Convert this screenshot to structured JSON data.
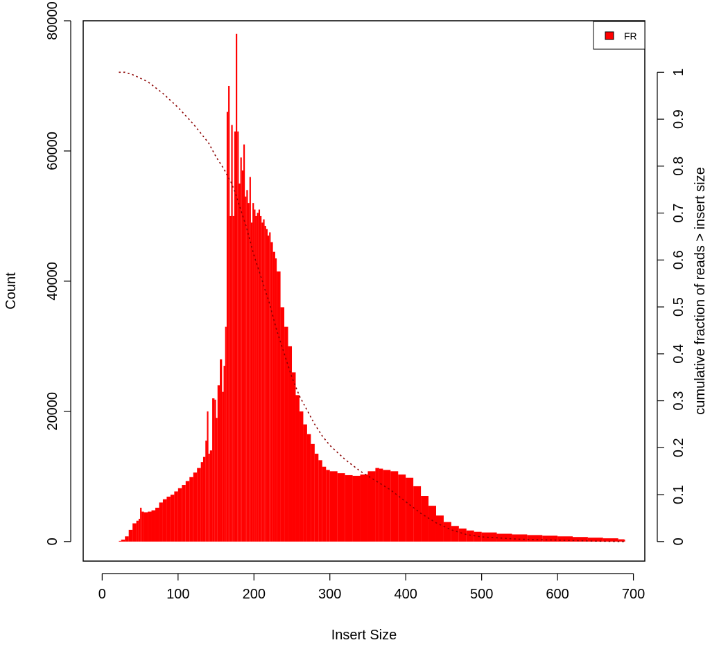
{
  "chart_data": {
    "type": "bar",
    "title": "",
    "xlabel": "Insert Size",
    "ylabel": "Count",
    "y2label": "cumulative fraction of reads > insert size",
    "xlim": [
      -25,
      715
    ],
    "ylim": [
      -3000,
      80000
    ],
    "y2lim": [
      -0.0416,
      1.1097
    ],
    "xticks": [
      "0",
      "100",
      "200",
      "300",
      "400",
      "500",
      "600",
      "700"
    ],
    "yticks": [
      "0",
      "20000",
      "40000",
      "60000",
      "80000"
    ],
    "y2ticks": [
      "0",
      "0.1",
      "0.2",
      "0.3",
      "0.4",
      "0.5",
      "0.6",
      "0.7",
      "0.8",
      "0.9",
      "1"
    ],
    "legend": {
      "position": "top-right",
      "entries": [
        {
          "label": "FR",
          "color": "#ff0000"
        }
      ]
    },
    "series": [
      {
        "name": "FR",
        "kind": "bar",
        "color": "#ff0000",
        "x": [
          22,
          25,
          30,
          35,
          40,
          45,
          48,
          50,
          52,
          55,
          60,
          65,
          70,
          75,
          80,
          85,
          90,
          95,
          100,
          105,
          110,
          115,
          120,
          125,
          130,
          133,
          136,
          138,
          140,
          142,
          145,
          148,
          150,
          152,
          155,
          158,
          160,
          162,
          164,
          166,
          168,
          170,
          172,
          174,
          176,
          178,
          180,
          182,
          184,
          186,
          188,
          190,
          192,
          194,
          196,
          198,
          200,
          202,
          204,
          206,
          208,
          210,
          212,
          214,
          216,
          218,
          220,
          222,
          225,
          228,
          230,
          235,
          240,
          245,
          250,
          255,
          260,
          265,
          270,
          275,
          280,
          285,
          290,
          295,
          300,
          310,
          320,
          330,
          340,
          350,
          360,
          365,
          370,
          380,
          390,
          400,
          410,
          420,
          430,
          440,
          450,
          460,
          470,
          480,
          490,
          500,
          520,
          540,
          560,
          580,
          600,
          620,
          640,
          660,
          680,
          688
        ],
        "values": [
          100,
          300,
          800,
          1800,
          2800,
          3200,
          3500,
          5200,
          4600,
          4500,
          4600,
          4800,
          5200,
          6000,
          6500,
          6900,
          7200,
          7700,
          8200,
          8700,
          9300,
          9900,
          10600,
          11300,
          12200,
          13000,
          15500,
          20000,
          13500,
          14000,
          22000,
          21800,
          19000,
          24000,
          28000,
          23000,
          27000,
          33000,
          66000,
          70000,
          50000,
          64000,
          50000,
          63000,
          78000,
          63000,
          55000,
          59000,
          57000,
          61000,
          53000,
          54000,
          52000,
          56000,
          49000,
          52000,
          51000,
          50000,
          50500,
          51000,
          50000,
          49000,
          49500,
          48500,
          48000,
          47000,
          47500,
          46000,
          44500,
          43500,
          41500,
          36000,
          33000,
          30000,
          26000,
          22500,
          20000,
          18000,
          16500,
          15000,
          13500,
          12500,
          11500,
          11000,
          10800,
          10500,
          10200,
          10100,
          10300,
          10800,
          11300,
          11200,
          11000,
          10800,
          10300,
          9800,
          8500,
          7000,
          5500,
          4000,
          3000,
          2400,
          2000,
          1700,
          1500,
          1400,
          1200,
          1100,
          1000,
          900,
          800,
          700,
          600,
          500,
          350,
          300
        ]
      },
      {
        "name": "",
        "kind": "cumulative",
        "color": "#8b0000",
        "axis": "right",
        "x": [
          22,
          30,
          40,
          60,
          80,
          100,
          120,
          140,
          150,
          160,
          170,
          175,
          180,
          190,
          200,
          210,
          220,
          230,
          240,
          250,
          260,
          270,
          280,
          290,
          300,
          320,
          340,
          360,
          380,
          400,
          420,
          440,
          460,
          480,
          500,
          550,
          600,
          650,
          688
        ],
        "values": [
          1.0,
          1.0,
          0.995,
          0.98,
          0.955,
          0.925,
          0.89,
          0.85,
          0.82,
          0.795,
          0.765,
          0.745,
          0.72,
          0.67,
          0.61,
          0.56,
          0.51,
          0.45,
          0.4,
          0.35,
          0.31,
          0.28,
          0.25,
          0.225,
          0.205,
          0.175,
          0.15,
          0.13,
          0.11,
          0.085,
          0.06,
          0.04,
          0.025,
          0.015,
          0.01,
          0.005,
          0.003,
          0.001,
          0.0
        ]
      }
    ]
  }
}
